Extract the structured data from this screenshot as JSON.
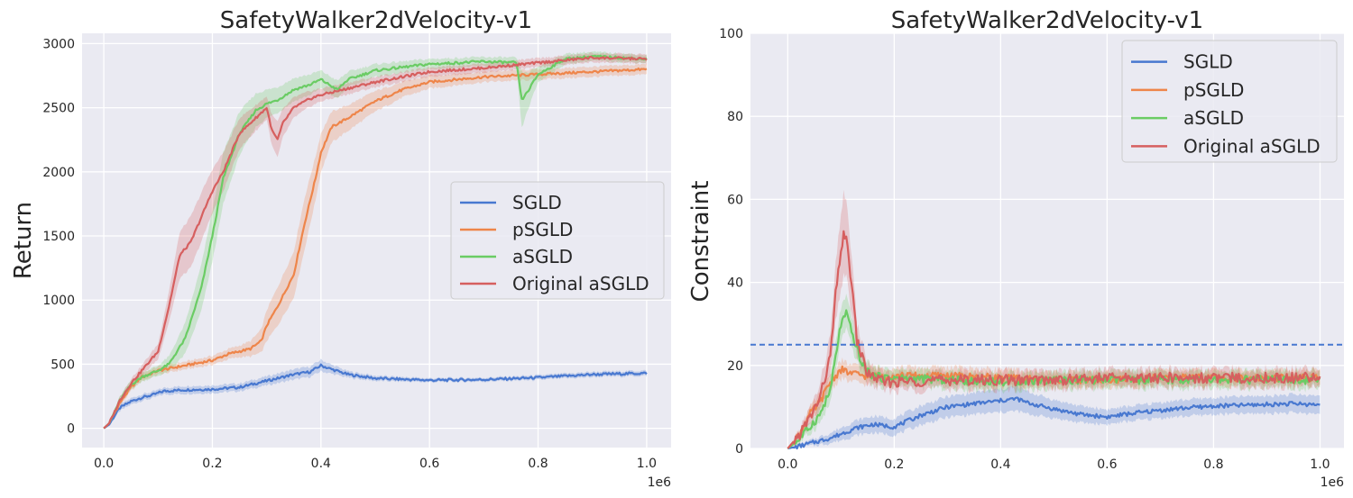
{
  "colors": {
    "SGLD": "#4878d0",
    "pSGLD": "#ee854a",
    "aSGLD": "#6acc64",
    "Original aSGLD": "#d65f5f",
    "background": "#eaeaf2"
  },
  "chart_data": [
    {
      "type": "line",
      "title": "SafetyWalker2dVelocity-v1",
      "xlabel": "",
      "ylabel": "Return",
      "x_offset_label": "1e6",
      "xlim": [
        -0.04,
        1.045
      ],
      "ylim": [
        -150,
        3080
      ],
      "xticks": [
        0.0,
        0.2,
        0.4,
        0.6,
        0.8,
        1.0
      ],
      "xtick_labels": [
        "0.0",
        "0.2",
        "0.4",
        "0.6",
        "0.8",
        "1.0"
      ],
      "yticks": [
        0,
        500,
        1000,
        1500,
        2000,
        2500,
        3000
      ],
      "ytick_labels": [
        "0",
        "500",
        "1000",
        "1500",
        "2000",
        "2500",
        "3000"
      ],
      "legend_position": "center-right",
      "series": [
        {
          "name": "SGLD",
          "x": [
            0,
            0.01,
            0.02,
            0.03,
            0.05,
            0.07,
            0.09,
            0.11,
            0.15,
            0.2,
            0.25,
            0.3,
            0.35,
            0.38,
            0.4,
            0.42,
            0.45,
            0.5,
            0.6,
            0.7,
            0.8,
            0.9,
            1.0
          ],
          "y": [
            0,
            30,
            100,
            160,
            210,
            240,
            260,
            290,
            300,
            305,
            320,
            370,
            420,
            440,
            490,
            460,
            420,
            390,
            375,
            380,
            395,
            420,
            430
          ],
          "band": [
            0,
            10,
            20,
            25,
            25,
            25,
            25,
            25,
            30,
            30,
            30,
            35,
            40,
            40,
            45,
            35,
            25,
            20,
            15,
            15,
            18,
            20,
            20
          ]
        },
        {
          "name": "pSGLD",
          "x": [
            0,
            0.01,
            0.02,
            0.03,
            0.05,
            0.07,
            0.1,
            0.15,
            0.2,
            0.23,
            0.25,
            0.27,
            0.29,
            0.3,
            0.32,
            0.35,
            0.37,
            0.39,
            0.4,
            0.42,
            0.45,
            0.5,
            0.55,
            0.6,
            0.7,
            0.8,
            0.9,
            1.0
          ],
          "y": [
            0,
            40,
            120,
            200,
            320,
            400,
            450,
            490,
            530,
            580,
            600,
            620,
            680,
            800,
            950,
            1200,
            1600,
            1950,
            2150,
            2350,
            2420,
            2550,
            2640,
            2700,
            2740,
            2760,
            2780,
            2800
          ],
          "band": [
            0,
            10,
            20,
            25,
            30,
            30,
            30,
            30,
            35,
            40,
            45,
            60,
            90,
            120,
            150,
            180,
            200,
            170,
            150,
            120,
            100,
            80,
            60,
            50,
            40,
            40,
            40,
            40
          ]
        },
        {
          "name": "aSGLD",
          "x": [
            0,
            0.01,
            0.02,
            0.03,
            0.05,
            0.07,
            0.1,
            0.12,
            0.15,
            0.18,
            0.2,
            0.22,
            0.25,
            0.28,
            0.3,
            0.32,
            0.35,
            0.38,
            0.4,
            0.43,
            0.45,
            0.5,
            0.6,
            0.7,
            0.76,
            0.77,
            0.78,
            0.8,
            0.85,
            0.9,
            1.0
          ],
          "y": [
            0,
            40,
            130,
            220,
            340,
            400,
            450,
            500,
            700,
            1100,
            1500,
            1950,
            2300,
            2480,
            2530,
            2560,
            2640,
            2680,
            2720,
            2640,
            2720,
            2790,
            2840,
            2860,
            2850,
            2560,
            2620,
            2760,
            2880,
            2900,
            2880
          ],
          "band": [
            0,
            10,
            20,
            30,
            35,
            35,
            40,
            60,
            120,
            180,
            200,
            200,
            170,
            130,
            110,
            100,
            90,
            80,
            70,
            70,
            60,
            50,
            40,
            35,
            40,
            220,
            150,
            60,
            40,
            35,
            30
          ]
        },
        {
          "name": "Original aSGLD",
          "x": [
            0,
            0.01,
            0.02,
            0.03,
            0.05,
            0.07,
            0.1,
            0.12,
            0.14,
            0.16,
            0.18,
            0.2,
            0.22,
            0.25,
            0.28,
            0.3,
            0.31,
            0.32,
            0.33,
            0.35,
            0.38,
            0.4,
            0.45,
            0.5,
            0.6,
            0.7,
            0.8,
            0.9,
            1.0
          ],
          "y": [
            0,
            40,
            130,
            220,
            350,
            450,
            600,
            950,
            1350,
            1450,
            1650,
            1850,
            2000,
            2300,
            2420,
            2500,
            2320,
            2250,
            2380,
            2500,
            2570,
            2600,
            2650,
            2700,
            2780,
            2810,
            2850,
            2890,
            2880
          ],
          "band": [
            0,
            10,
            20,
            30,
            35,
            40,
            60,
            120,
            180,
            200,
            190,
            170,
            150,
            120,
            100,
            90,
            120,
            140,
            110,
            80,
            60,
            50,
            45,
            40,
            35,
            35,
            35,
            35,
            35
          ]
        }
      ]
    },
    {
      "type": "line",
      "title": "SafetyWalker2dVelocity-v1",
      "xlabel": "",
      "ylabel": "Constraint",
      "x_offset_label": "1e6",
      "xlim": [
        -0.07,
        1.045
      ],
      "ylim": [
        0,
        100
      ],
      "xticks": [
        0.0,
        0.2,
        0.4,
        0.6,
        0.8,
        1.0
      ],
      "xtick_labels": [
        "0.0",
        "0.2",
        "0.4",
        "0.6",
        "0.8",
        "1.0"
      ],
      "yticks": [
        0,
        20,
        40,
        60,
        80,
        100
      ],
      "ytick_labels": [
        "0",
        "20",
        "40",
        "60",
        "80",
        "100"
      ],
      "threshold": 25,
      "legend_position": "top-right",
      "series": [
        {
          "name": "SGLD",
          "x": [
            0,
            0.02,
            0.05,
            0.08,
            0.1,
            0.13,
            0.16,
            0.2,
            0.25,
            0.3,
            0.35,
            0.4,
            0.43,
            0.45,
            0.5,
            0.55,
            0.6,
            0.65,
            0.7,
            0.75,
            0.8,
            0.85,
            0.9,
            0.95,
            1.0
          ],
          "y": [
            0,
            0.5,
            1.5,
            2.5,
            3.5,
            5,
            5.8,
            5.2,
            8,
            10,
            10.8,
            11.5,
            12,
            11,
            9.5,
            8.2,
            7.6,
            8.5,
            9.2,
            9.8,
            10.2,
            10.4,
            10.6,
            10.8,
            10.5
          ],
          "band": [
            0,
            0.3,
            0.8,
            1.2,
            1.5,
            1.8,
            2,
            2,
            2.3,
            2.5,
            2.6,
            2.8,
            3,
            2.7,
            2.2,
            2,
            1.8,
            1.8,
            1.9,
            2,
            2,
            2.1,
            2.1,
            2.2,
            2.2
          ],
          "noise": 0.5
        },
        {
          "name": "pSGLD",
          "x": [
            0,
            0.02,
            0.04,
            0.06,
            0.08,
            0.1,
            0.12,
            0.15,
            0.2,
            0.3,
            0.4,
            0.5,
            0.6,
            0.7,
            0.8,
            0.9,
            1.0
          ],
          "y": [
            0,
            3,
            8,
            11,
            16,
            19,
            18,
            17.5,
            17.5,
            17.5,
            17,
            16.5,
            16.5,
            17,
            17,
            17,
            17
          ],
          "band": [
            0,
            1,
            1.5,
            2,
            2,
            2.2,
            2,
            2,
            2,
            2,
            2,
            1.8,
            1.8,
            1.8,
            1.8,
            1.8,
            1.8
          ],
          "noise": 0.9
        },
        {
          "name": "aSGLD",
          "x": [
            0,
            0.02,
            0.04,
            0.06,
            0.08,
            0.1,
            0.11,
            0.12,
            0.14,
            0.16,
            0.18,
            0.2,
            0.3,
            0.4,
            0.5,
            0.6,
            0.7,
            0.8,
            0.9,
            1.0
          ],
          "y": [
            0,
            2,
            5,
            8,
            14,
            30,
            32.5,
            28,
            20,
            17.5,
            17,
            17,
            16.5,
            16,
            16.5,
            16.5,
            16.5,
            16.5,
            16.5,
            16.5
          ],
          "band": [
            0,
            1,
            1.5,
            2,
            3,
            4,
            4,
            3.5,
            2.5,
            2,
            2,
            2,
            2,
            2,
            2,
            2,
            2,
            2,
            2,
            2
          ],
          "noise": 1.0
        },
        {
          "name": "Original aSGLD",
          "x": [
            0,
            0.02,
            0.04,
            0.06,
            0.08,
            0.09,
            0.1,
            0.105,
            0.11,
            0.12,
            0.13,
            0.15,
            0.18,
            0.2,
            0.3,
            0.4,
            0.5,
            0.6,
            0.7,
            0.8,
            0.9,
            1.0
          ],
          "y": [
            0,
            3,
            7,
            12,
            22,
            37,
            47,
            52.5,
            50,
            40,
            26,
            18,
            16,
            16,
            16.5,
            16.5,
            16.5,
            17,
            17,
            17,
            17,
            17
          ],
          "band": [
            0,
            1,
            2,
            3,
            5,
            7,
            9,
            10,
            9,
            7,
            4,
            2.5,
            2,
            2,
            2,
            2,
            2,
            2,
            2,
            2,
            2,
            2
          ],
          "noise": 1.3
        }
      ]
    }
  ]
}
